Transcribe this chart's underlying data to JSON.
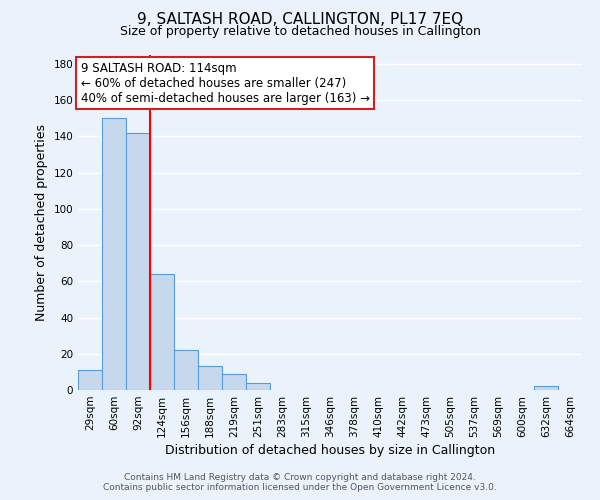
{
  "title": "9, SALTASH ROAD, CALLINGTON, PL17 7EQ",
  "subtitle": "Size of property relative to detached houses in Callington",
  "xlabel": "Distribution of detached houses by size in Callington",
  "ylabel": "Number of detached properties",
  "footer_line1": "Contains HM Land Registry data © Crown copyright and database right 2024.",
  "footer_line2": "Contains public sector information licensed under the Open Government Licence v3.0.",
  "bin_labels": [
    "29sqm",
    "60sqm",
    "92sqm",
    "124sqm",
    "156sqm",
    "188sqm",
    "219sqm",
    "251sqm",
    "283sqm",
    "315sqm",
    "346sqm",
    "378sqm",
    "410sqm",
    "442sqm",
    "473sqm",
    "505sqm",
    "537sqm",
    "569sqm",
    "600sqm",
    "632sqm",
    "664sqm"
  ],
  "bar_values": [
    11,
    150,
    142,
    64,
    22,
    13,
    9,
    4,
    0,
    0,
    0,
    0,
    0,
    0,
    0,
    0,
    0,
    0,
    0,
    2,
    0
  ],
  "bar_color": "#c5d8ed",
  "bar_edge_color": "#5b9bd5",
  "vline_x": 2.5,
  "vline_color": "red",
  "annotation_title": "9 SALTASH ROAD: 114sqm",
  "annotation_line1": "← 60% of detached houses are smaller (247)",
  "annotation_line2": "40% of semi-detached houses are larger (163) →",
  "ylim": [
    0,
    185
  ],
  "yticks": [
    0,
    20,
    40,
    60,
    80,
    100,
    120,
    140,
    160,
    180
  ],
  "bg_color": "#eaf3fb",
  "grid_color": "#ffffff",
  "title_fontsize": 11,
  "subtitle_fontsize": 9,
  "ylabel_fontsize": 9,
  "xlabel_fontsize": 9,
  "tick_fontsize": 7.5,
  "footer_fontsize": 6.5
}
